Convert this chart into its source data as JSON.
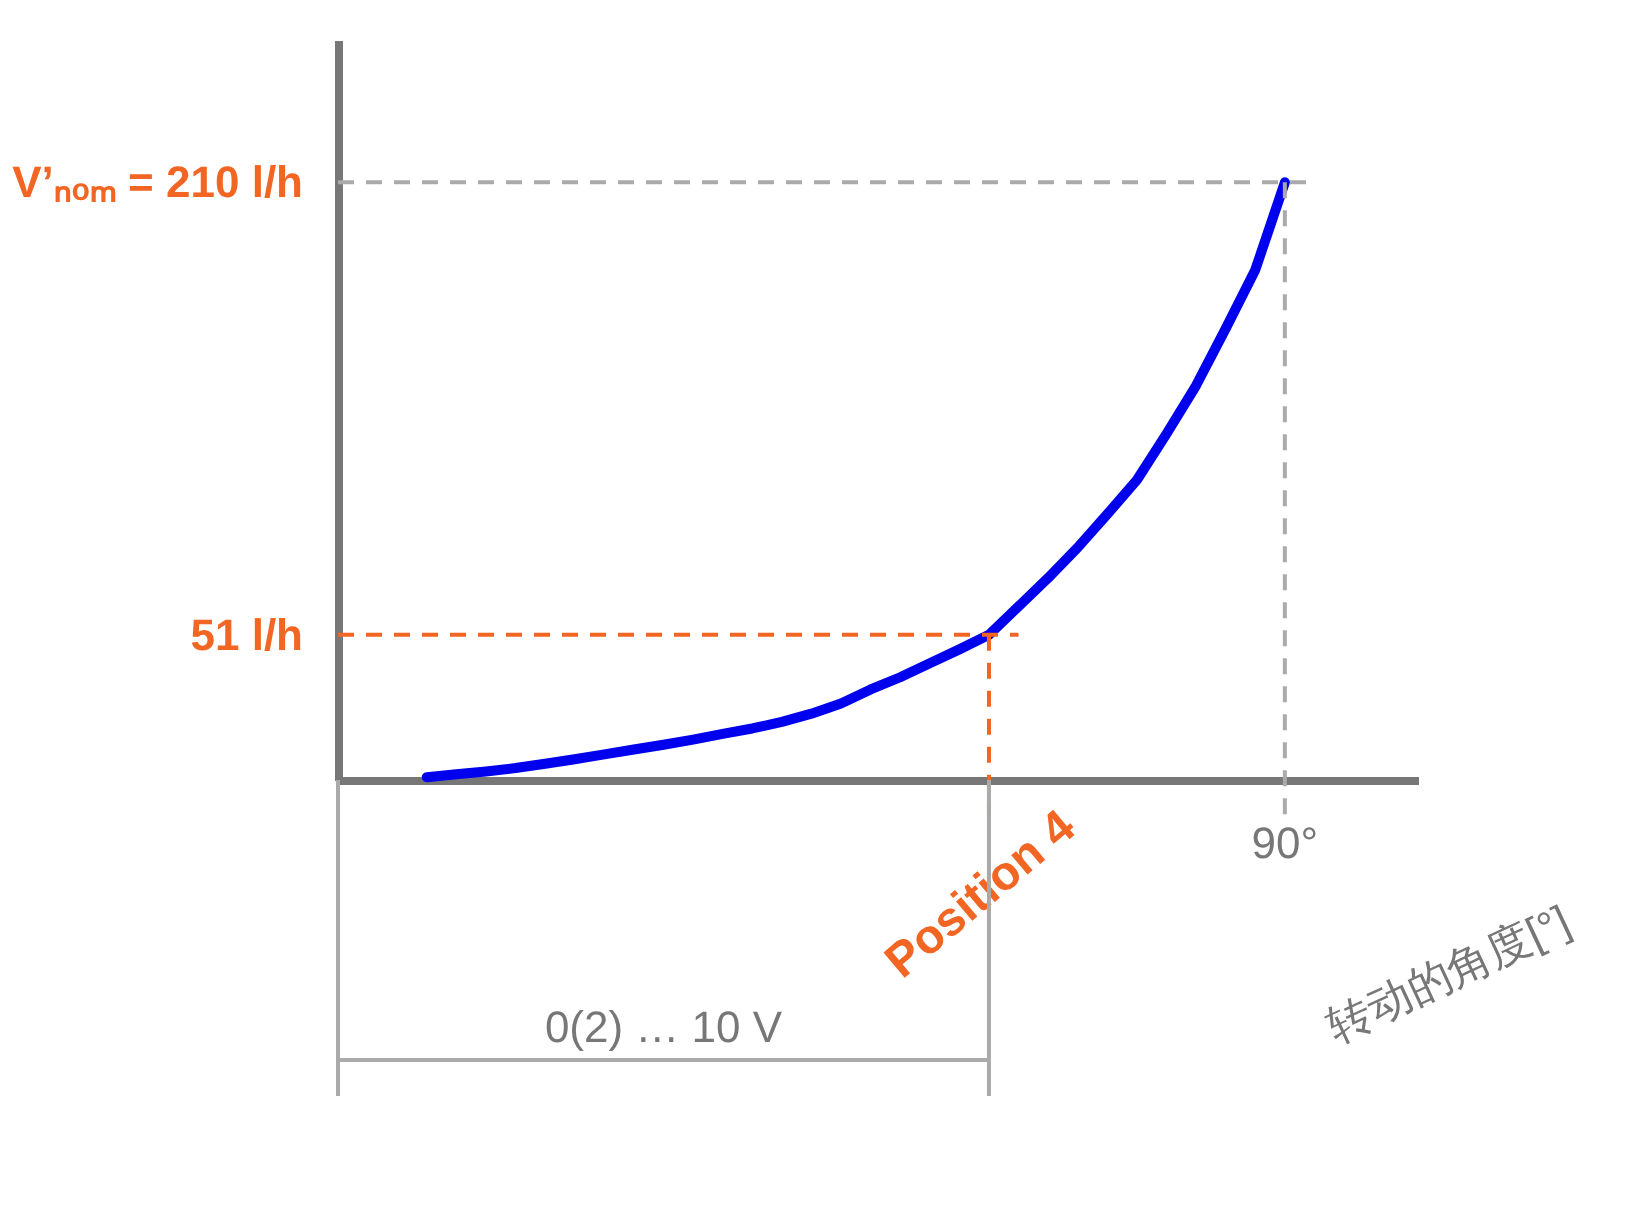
{
  "chart_data": {
    "type": "line",
    "xlabel": "转动的角度[°]",
    "categories": [
      null,
      null,
      null,
      null,
      null,
      null,
      null,
      null,
      null,
      null,
      null,
      null,
      null,
      null,
      null,
      null,
      null,
      null,
      null,
      null,
      null,
      null,
      null,
      null,
      null,
      null,
      null,
      null,
      null,
      null
    ],
    "series": [
      {
        "color": "#0000ee",
        "values": [
          1.0,
          2.0,
          3.0,
          4.2,
          5.7,
          7.3,
          9.0,
          10.7,
          12.4,
          14.2,
          16.2,
          18.1,
          20.4,
          23.3,
          26.9,
          31.8,
          36.1,
          41.0,
          45.9,
          51,
          61.0,
          71.0,
          81.7,
          93.4,
          105.4,
          121.6,
          138.6,
          158.6,
          179.2,
          210
        ]
      }
    ],
    "ylim": [
      0,
      260
    ],
    "yticks": [
      {
        "value": 51,
        "label": "51 l/h"
      },
      {
        "value": 210,
        "label": "V’ₙₒₘ = 210 l/h"
      }
    ],
    "ref_lines": [
      {
        "axis": "y",
        "value": 51,
        "color": "#f26522",
        "line_style": "dashed"
      },
      {
        "axis": "y",
        "value": 210,
        "color": "#aaaaaa",
        "line_style": "dashed"
      }
    ],
    "annotations": [
      {
        "text": "Position 4",
        "y": 51
      },
      "90°",
      "0(2) … 10 V"
    ],
    "grid": false,
    "marker": "none",
    "line_style": "solid"
  }
}
